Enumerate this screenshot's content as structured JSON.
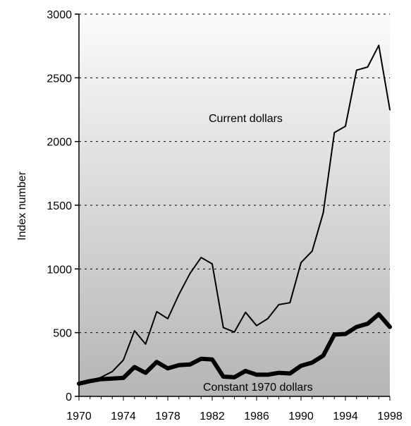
{
  "chart_data": {
    "type": "line",
    "ylabel": "Index number",
    "ylim": [
      0,
      3000
    ],
    "xlim": [
      1970,
      1998
    ],
    "y_ticks": [
      0,
      500,
      1000,
      1500,
      2000,
      2500,
      3000
    ],
    "x_ticks": [
      1970,
      1974,
      1978,
      1982,
      1986,
      1990,
      1994,
      1998
    ],
    "grid": "horizontal dashed",
    "background": "vertical gradient, light grey to mid grey",
    "x": [
      1970,
      1971,
      1972,
      1973,
      1974,
      1975,
      1976,
      1977,
      1978,
      1979,
      1980,
      1981,
      1982,
      1983,
      1984,
      1985,
      1986,
      1987,
      1988,
      1989,
      1990,
      1991,
      1992,
      1993,
      1994,
      1995,
      1996,
      1997,
      1998
    ],
    "series": [
      {
        "name": "Current dollars",
        "style": "thin",
        "values": [
          100,
          120,
          150,
          195,
          285,
          515,
          410,
          665,
          610,
          800,
          965,
          1090,
          1040,
          540,
          505,
          660,
          555,
          610,
          720,
          735,
          1050,
          1140,
          1440,
          2070,
          2120,
          2560,
          2585,
          2755,
          2250
        ]
      },
      {
        "name": "Constant 1970 dollars",
        "style": "thick",
        "values": [
          100,
          120,
          135,
          140,
          145,
          230,
          185,
          270,
          220,
          245,
          250,
          295,
          290,
          155,
          150,
          200,
          170,
          170,
          185,
          180,
          240,
          265,
          320,
          485,
          490,
          545,
          570,
          645,
          545
        ]
      }
    ]
  }
}
